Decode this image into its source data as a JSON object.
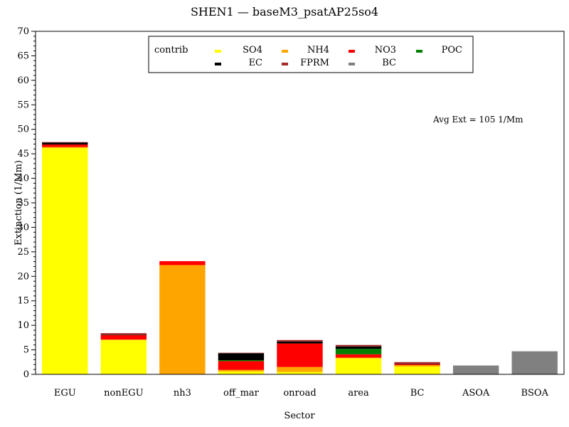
{
  "chart_data": {
    "type": "bar",
    "stacked": true,
    "title": "SHEN1 — baseM3_psatAP25so4",
    "xlabel": "Sector",
    "ylabel": "Extinction (1/Mm)",
    "ylim": [
      0,
      70
    ],
    "yticks": [
      0,
      5,
      10,
      15,
      20,
      25,
      30,
      35,
      40,
      45,
      50,
      55,
      60,
      65,
      70
    ],
    "grid": false,
    "legend_title": "contrib",
    "legend_position": "top-center",
    "annotation": "Avg Ext =  105 1/Mm",
    "categories": [
      "EGU",
      "nonEGU",
      "nh3",
      "off_mar",
      "onroad",
      "area",
      "BC",
      "ASOA",
      "BSOA"
    ],
    "series": [
      {
        "name": "SO4",
        "color": "#ffff00",
        "values": [
          46.2,
          7.0,
          0.0,
          0.6,
          0.5,
          3.3,
          1.6,
          0.0,
          0.0
        ]
      },
      {
        "name": "NH4",
        "color": "#ffa500",
        "values": [
          0.2,
          0.1,
          22.3,
          0.3,
          1.0,
          0.1,
          0.3,
          0.0,
          0.0
        ]
      },
      {
        "name": "NO3",
        "color": "#ff0000",
        "values": [
          0.5,
          0.9,
          0.8,
          1.8,
          4.8,
          0.7,
          0.2,
          0.0,
          0.0
        ]
      },
      {
        "name": "POC",
        "color": "#008000",
        "values": [
          0.0,
          0.0,
          0.0,
          0.2,
          0.0,
          1.1,
          0.0,
          0.0,
          0.0
        ]
      },
      {
        "name": "EC",
        "color": "#000000",
        "values": [
          0.4,
          0.1,
          0.0,
          1.4,
          0.4,
          0.5,
          0.1,
          0.0,
          0.0
        ]
      },
      {
        "name": "FPRM",
        "color": "#a52a2a",
        "values": [
          0.1,
          0.3,
          0.0,
          0.1,
          0.3,
          0.3,
          0.3,
          0.0,
          0.0
        ]
      },
      {
        "name": "BC",
        "color": "#808080",
        "values": [
          0.0,
          0.0,
          0.0,
          0.0,
          0.0,
          0.0,
          0.0,
          1.8,
          4.7
        ]
      }
    ]
  }
}
